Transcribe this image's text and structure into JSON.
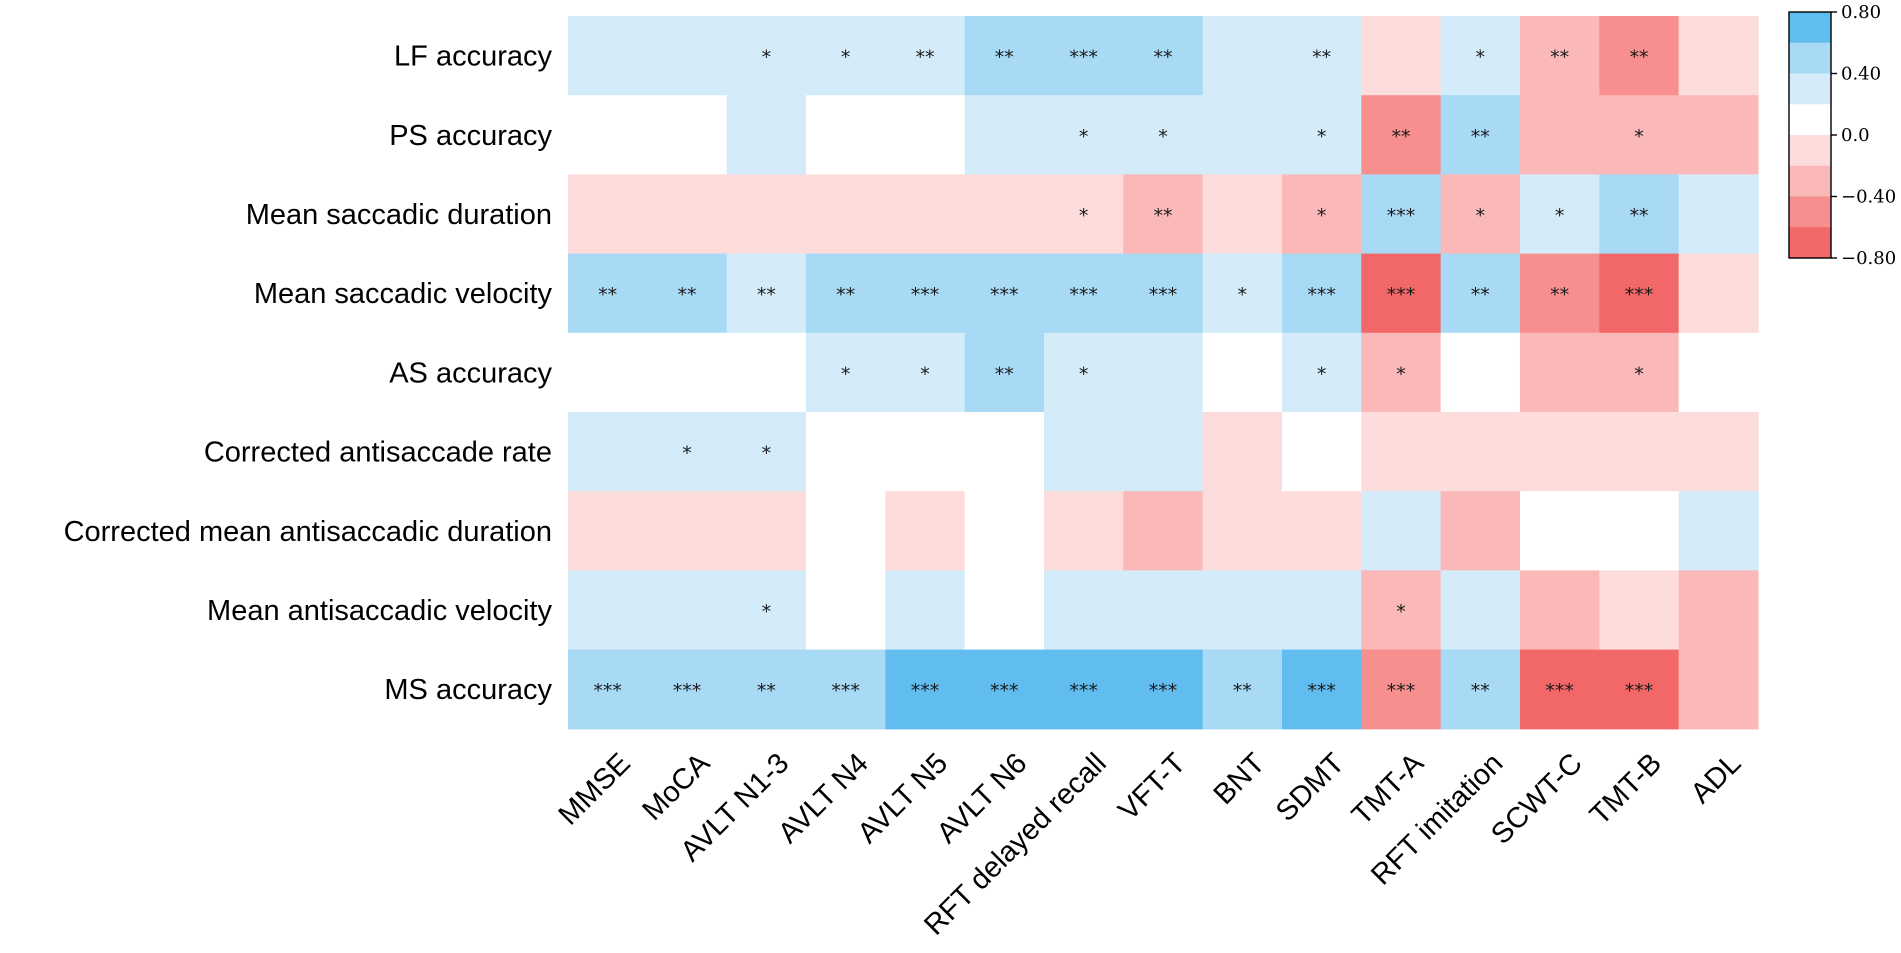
{
  "chart_data": {
    "type": "heatmap",
    "title": "",
    "xlabel": "",
    "ylabel": "",
    "rows": [
      "LF accuracy",
      "PS accuracy",
      "Mean saccadic duration",
      "Mean saccadic velocity",
      "AS accuracy",
      "Corrected antisaccade rate",
      "Corrected mean antisaccadic duration",
      "Mean antisaccadic velocity",
      "MS accuracy"
    ],
    "columns": [
      "MMSE",
      "MoCA",
      "AVLT N1-3",
      "AVLT N4",
      "AVLT N5",
      "AVLT N6",
      "RFT delayed recall",
      "VFT-T",
      "BNT",
      "SDMT",
      "TMT-A",
      "RFT imitation",
      "SCWT-C",
      "TMT-B",
      "ADL"
    ],
    "values": [
      [
        0.3,
        0.3,
        0.3,
        0.3,
        0.3,
        0.5,
        0.5,
        0.5,
        0.3,
        0.3,
        -0.2,
        0.3,
        -0.4,
        -0.5,
        -0.2
      ],
      [
        0.0,
        0.0,
        0.3,
        0.0,
        0.0,
        0.3,
        0.3,
        0.3,
        0.3,
        0.3,
        -0.6,
        0.5,
        -0.4,
        -0.4,
        -0.4
      ],
      [
        -0.2,
        -0.2,
        -0.2,
        -0.2,
        -0.2,
        -0.2,
        -0.2,
        -0.4,
        -0.2,
        -0.4,
        0.5,
        -0.4,
        0.3,
        0.5,
        0.3
      ],
      [
        0.5,
        0.5,
        0.3,
        0.5,
        0.5,
        0.5,
        0.5,
        0.5,
        0.3,
        0.5,
        -0.8,
        0.5,
        -0.6,
        -0.8,
        -0.2
      ],
      [
        0.0,
        0.0,
        0.0,
        0.3,
        0.3,
        0.5,
        0.3,
        0.3,
        0.0,
        0.3,
        -0.4,
        0.0,
        -0.4,
        -0.4,
        0.0
      ],
      [
        0.3,
        0.3,
        0.3,
        0.0,
        0.0,
        0.0,
        0.3,
        0.3,
        -0.2,
        0.0,
        -0.2,
        -0.2,
        -0.2,
        -0.2,
        -0.2
      ],
      [
        -0.2,
        -0.2,
        -0.2,
        0.0,
        -0.2,
        0.0,
        -0.2,
        -0.4,
        -0.2,
        -0.2,
        0.3,
        -0.4,
        0.0,
        0.0,
        0.3
      ],
      [
        0.3,
        0.3,
        0.3,
        0.0,
        0.3,
        0.0,
        0.3,
        0.3,
        0.3,
        0.3,
        -0.4,
        0.3,
        -0.4,
        -0.2,
        -0.4
      ],
      [
        0.5,
        0.5,
        0.5,
        0.5,
        0.7,
        0.7,
        0.7,
        0.7,
        0.5,
        0.7,
        -0.6,
        0.5,
        -0.7,
        -0.7,
        -0.4
      ]
    ],
    "significance": [
      [
        "",
        "",
        "*",
        "*",
        "**",
        "**",
        "***",
        "**",
        "",
        "**",
        "",
        "*",
        "**",
        "**",
        ""
      ],
      [
        "",
        "",
        "",
        "",
        "",
        "",
        "*",
        "*",
        "",
        "*",
        "**",
        "**",
        "",
        "*",
        ""
      ],
      [
        "",
        "",
        "",
        "",
        "",
        "",
        "*",
        "**",
        "",
        "*",
        "***",
        "*",
        "*",
        "**",
        ""
      ],
      [
        "**",
        "**",
        "**",
        "**",
        "***",
        "***",
        "***",
        "***",
        "*",
        "***",
        "***",
        "**",
        "**",
        "***",
        ""
      ],
      [
        "",
        "",
        "",
        "*",
        "*",
        "**",
        "*",
        "",
        "",
        "*",
        "*",
        "",
        "",
        "*",
        ""
      ],
      [
        "",
        "*",
        "*",
        "",
        "",
        "",
        "",
        "",
        "",
        "",
        "",
        "",
        "",
        "",
        ""
      ],
      [
        "",
        "",
        "",
        "",
        "",
        "",
        "",
        "",
        "",
        "",
        "",
        "",
        "",
        "",
        ""
      ],
      [
        "",
        "",
        "*",
        "",
        "",
        "",
        "",
        "",
        "",
        "",
        "*",
        "",
        "",
        "",
        ""
      ],
      [
        "***",
        "***",
        "**",
        "***",
        "***",
        "***",
        "***",
        "***",
        "**",
        "***",
        "***",
        "**",
        "***",
        "***",
        ""
      ]
    ],
    "value_range": [
      -0.8,
      0.8
    ],
    "colorbar": {
      "ticks": [
        "0.80",
        "0.40",
        "0.0",
        "−0.40",
        "−0.80"
      ],
      "tick_values": [
        0.8,
        0.4,
        0.0,
        -0.4,
        -0.8
      ],
      "levels": [
        0.8,
        0.6,
        0.4,
        0.2,
        0.0,
        -0.2,
        -0.4,
        -0.6,
        -0.8
      ],
      "colors": [
        "#61bdf0",
        "#a8d9f5",
        "#d4ecfa",
        "#ffffff",
        "#fddcdc",
        "#fbb8b8",
        "#f78f8f",
        "#f26868"
      ]
    },
    "legend": "right"
  }
}
